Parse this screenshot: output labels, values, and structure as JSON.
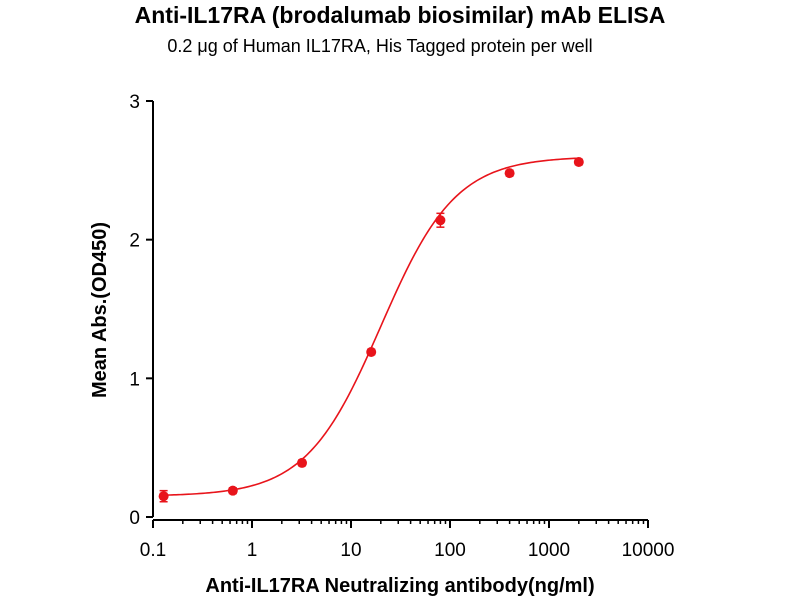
{
  "chart_data": {
    "type": "scatter",
    "title": "Anti-IL17RA (brodalumab biosimilar) mAb ELISA",
    "subtitle": "0.2 μg of Human IL17RA, His Tagged protein per well",
    "xlabel": "Anti-IL17RA Neutralizing antibody(ng/ml)",
    "ylabel": "Mean Abs.(OD450)",
    "x_scale": "log",
    "xlim": [
      0.1,
      10000
    ],
    "ylim": [
      0,
      3
    ],
    "x_ticks": [
      "0.1",
      "1",
      "10",
      "100",
      "1000",
      "10000"
    ],
    "y_ticks": [
      "0",
      "1",
      "2",
      "3"
    ],
    "grid": false,
    "color": "#e8141b",
    "series": [
      {
        "x": [
          0.128,
          0.64,
          3.2,
          16,
          80,
          400,
          2000
        ],
        "y": [
          0.15,
          0.19,
          0.39,
          1.19,
          2.14,
          2.48,
          2.56
        ],
        "err": [
          0.04,
          0.02,
          0.02,
          0.02,
          0.05,
          0.02,
          0.02
        ],
        "fit": {
          "bottom": 0.15,
          "top": 2.6,
          "ec50": 20,
          "hill": 1.15
        }
      }
    ]
  }
}
